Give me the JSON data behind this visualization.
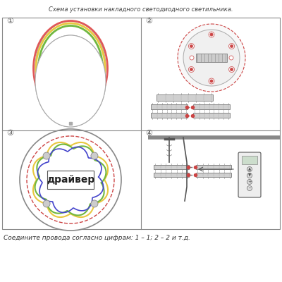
{
  "title": "Схема установки накладного светодиодного светильника.",
  "footer": "Соедините провода согласно цифрам: 1 – 1; 2 – 2 и т.д.",
  "background": "#ffffff",
  "border_color": "#888888",
  "text_color": "#333333",
  "panel_labels": [
    "①",
    "②",
    "③",
    "④"
  ],
  "panel_label_color": "#555555"
}
